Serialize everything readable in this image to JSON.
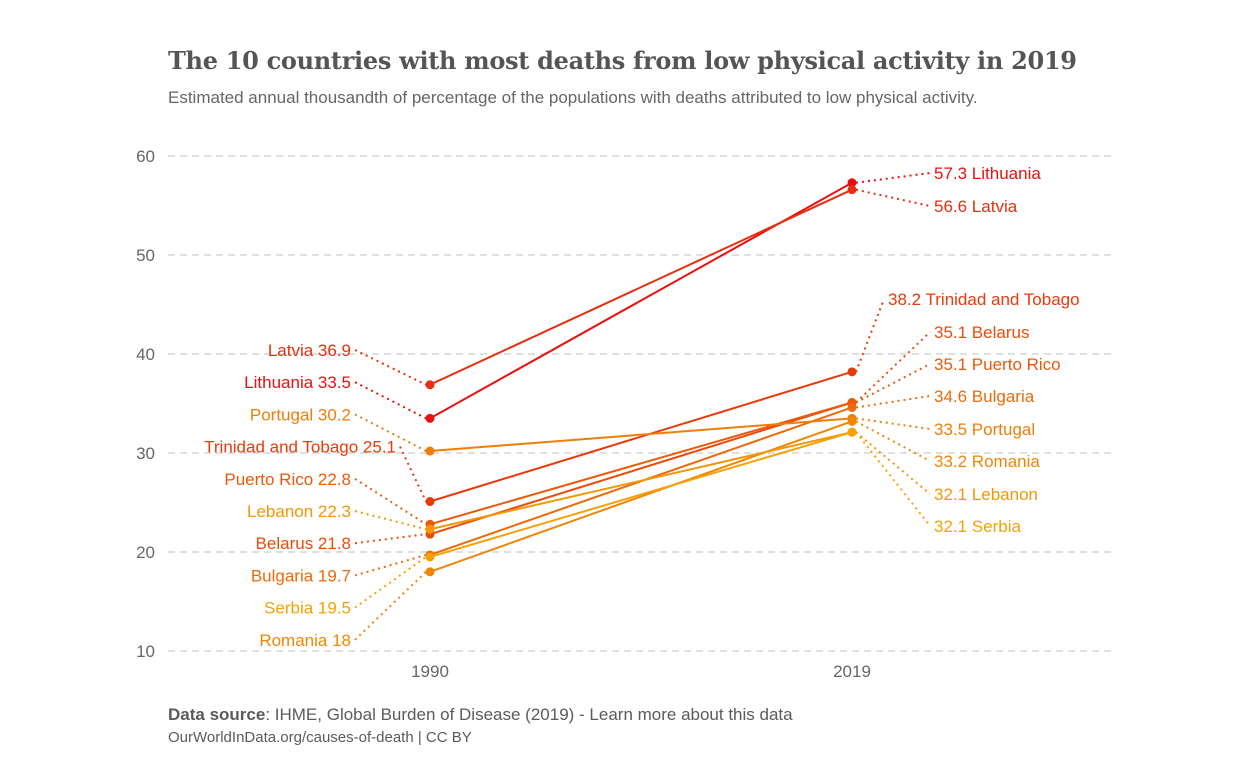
{
  "title": "The 10 countries with most deaths from low physical activity in 2019",
  "subtitle": "Estimated annual thousandth of percentage of the populations with deaths attributed to low physical activity.",
  "footer": {
    "source_label": "Data source",
    "source_text": ": IHME, Global Burden of Disease (2019) - Learn more about this data",
    "url_text": "OurWorldInData.org/causes-of-death | CC BY"
  },
  "chart_data": {
    "type": "line",
    "x": [
      "1990",
      "2019"
    ],
    "ylim": [
      10,
      60
    ],
    "yticks": [
      10,
      20,
      30,
      40,
      50,
      60
    ],
    "grid": true,
    "series": [
      {
        "name": "Lithuania",
        "values": [
          33.5,
          57.3
        ],
        "color": "#e8110f",
        "label_start": "Lithuania 33.5",
        "label_end": "57.3 Lithuania"
      },
      {
        "name": "Latvia",
        "values": [
          36.9,
          56.6
        ],
        "color": "#e62f0e",
        "label_start": "Latvia 36.9",
        "label_end": "56.6 Latvia"
      },
      {
        "name": "Trinidad and Tobago",
        "values": [
          25.1,
          38.2
        ],
        "color": "#e83b0c",
        "label_start": "Trinidad and Tobago 25.1",
        "label_end": "38.2 Trinidad and Tobago"
      },
      {
        "name": "Belarus",
        "values": [
          21.8,
          35.1
        ],
        "color": "#e94d0b",
        "label_start": "Belarus 21.8",
        "label_end": "35.1 Belarus"
      },
      {
        "name": "Puerto Rico",
        "values": [
          22.8,
          35.1
        ],
        "color": "#ea5a0a",
        "label_start": "Puerto Rico 22.8",
        "label_end": "35.1 Puerto Rico"
      },
      {
        "name": "Bulgaria",
        "values": [
          19.7,
          34.6
        ],
        "color": "#ed6a0a",
        "label_start": "Bulgaria 19.7",
        "label_end": "34.6 Bulgaria"
      },
      {
        "name": "Portugal",
        "values": [
          30.2,
          33.5
        ],
        "color": "#ef7e09",
        "label_start": "Portugal 30.2",
        "label_end": "33.5 Portugal"
      },
      {
        "name": "Romania",
        "values": [
          18.0,
          33.2
        ],
        "color": "#ef8608",
        "label_start": "Romania 18",
        "label_end": "33.2 Romania"
      },
      {
        "name": "Lebanon",
        "values": [
          22.3,
          32.1
        ],
        "color": "#f29708",
        "label_start": "Lebanon 22.3",
        "label_end": "32.1 Lebanon"
      },
      {
        "name": "Serbia",
        "values": [
          19.5,
          32.1
        ],
        "color": "#f5a207",
        "label_start": "Serbia 19.5",
        "label_end": "32.1 Serbia"
      }
    ]
  }
}
